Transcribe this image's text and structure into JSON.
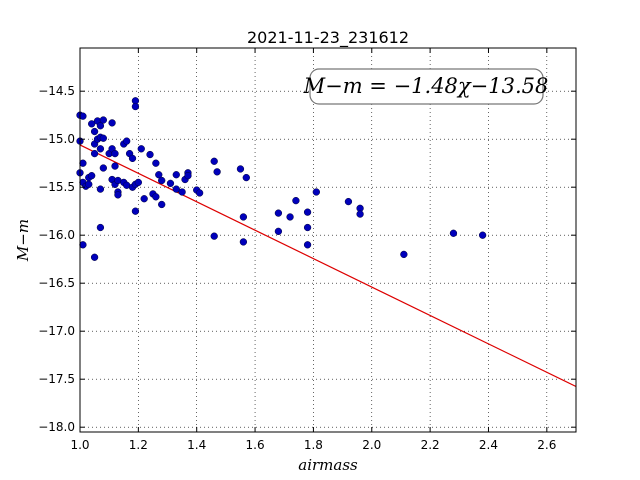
{
  "chart_data": {
    "type": "scatter",
    "title": "2021-11-23_231612",
    "xlabel": "airmass",
    "ylabel": "M−m",
    "xlim": [
      1.0,
      2.7
    ],
    "ylim": [
      -18.05,
      -14.05
    ],
    "x_ticks": [
      1.0,
      1.2,
      1.4,
      1.6,
      1.8,
      2.0,
      2.2,
      2.4,
      2.6
    ],
    "x_tick_labels": [
      "1.0",
      "1.2",
      "1.4",
      "1.6",
      "1.8",
      "2.0",
      "2.2",
      "2.4",
      "2.6"
    ],
    "y_ticks": [
      -14.5,
      -15.0,
      -15.5,
      -16.0,
      -16.5,
      -17.0,
      -17.5,
      -18.0
    ],
    "y_tick_labels": [
      "−14.5",
      "−15.0",
      "−15.5",
      "−16.0",
      "−16.5",
      "−17.0",
      "−17.5",
      "−18.0"
    ],
    "grid": true,
    "annotation": "M−m = −1.48χ−13.58",
    "fit": {
      "slope": -1.48,
      "intercept": -13.58,
      "color": "#dd0000"
    },
    "marker_color": "#0000bb",
    "points": [
      [
        1.0,
        -14.75
      ],
      [
        1.01,
        -14.76
      ],
      [
        1.0,
        -15.02
      ],
      [
        1.0,
        -15.35
      ],
      [
        1.01,
        -15.25
      ],
      [
        1.01,
        -15.45
      ],
      [
        1.02,
        -15.49
      ],
      [
        1.03,
        -15.4
      ],
      [
        1.03,
        -15.47
      ],
      [
        1.04,
        -15.38
      ],
      [
        1.01,
        -16.1
      ],
      [
        1.05,
        -16.23
      ],
      [
        1.04,
        -14.84
      ],
      [
        1.05,
        -14.92
      ],
      [
        1.06,
        -14.81
      ],
      [
        1.07,
        -14.86
      ],
      [
        1.08,
        -14.8
      ],
      [
        1.05,
        -15.05
      ],
      [
        1.06,
        -15.0
      ],
      [
        1.07,
        -14.98
      ],
      [
        1.08,
        -14.99
      ],
      [
        1.05,
        -15.15
      ],
      [
        1.07,
        -15.1
      ],
      [
        1.1,
        -15.15
      ],
      [
        1.07,
        -15.52
      ],
      [
        1.08,
        -15.3
      ],
      [
        1.07,
        -15.92
      ],
      [
        1.11,
        -14.83
      ],
      [
        1.11,
        -15.1
      ],
      [
        1.12,
        -15.15
      ],
      [
        1.12,
        -15.28
      ],
      [
        1.11,
        -15.42
      ],
      [
        1.12,
        -15.47
      ],
      [
        1.13,
        -15.43
      ],
      [
        1.13,
        -15.55
      ],
      [
        1.13,
        -15.58
      ],
      [
        1.15,
        -15.05
      ],
      [
        1.16,
        -15.02
      ],
      [
        1.17,
        -15.15
      ],
      [
        1.18,
        -15.2
      ],
      [
        1.15,
        -15.45
      ],
      [
        1.16,
        -15.48
      ],
      [
        1.18,
        -15.5
      ],
      [
        1.19,
        -15.47
      ],
      [
        1.2,
        -15.45
      ],
      [
        1.19,
        -14.6
      ],
      [
        1.19,
        -14.66
      ],
      [
        1.21,
        -15.1
      ],
      [
        1.19,
        -15.75
      ],
      [
        1.22,
        -15.62
      ],
      [
        1.24,
        -15.16
      ],
      [
        1.26,
        -15.25
      ],
      [
        1.25,
        -15.57
      ],
      [
        1.26,
        -15.6
      ],
      [
        1.27,
        -15.37
      ],
      [
        1.28,
        -15.43
      ],
      [
        1.28,
        -15.68
      ],
      [
        1.31,
        -15.46
      ],
      [
        1.33,
        -15.37
      ],
      [
        1.33,
        -15.52
      ],
      [
        1.35,
        -15.55
      ],
      [
        1.36,
        -15.42
      ],
      [
        1.37,
        -15.35
      ],
      [
        1.37,
        -15.38
      ],
      [
        1.4,
        -15.53
      ],
      [
        1.41,
        -15.56
      ],
      [
        1.46,
        -15.23
      ],
      [
        1.47,
        -15.34
      ],
      [
        1.46,
        -16.01
      ],
      [
        1.55,
        -15.31
      ],
      [
        1.57,
        -15.4
      ],
      [
        1.56,
        -15.81
      ],
      [
        1.56,
        -16.07
      ],
      [
        1.68,
        -15.77
      ],
      [
        1.68,
        -15.96
      ],
      [
        1.72,
        -15.81
      ],
      [
        1.74,
        -15.64
      ],
      [
        1.78,
        -15.76
      ],
      [
        1.78,
        -15.92
      ],
      [
        1.78,
        -16.1
      ],
      [
        1.81,
        -15.55
      ],
      [
        1.92,
        -15.65
      ],
      [
        1.96,
        -15.72
      ],
      [
        1.96,
        -15.78
      ],
      [
        2.11,
        -16.2
      ],
      [
        2.28,
        -15.98
      ],
      [
        2.38,
        -16.0
      ]
    ]
  }
}
